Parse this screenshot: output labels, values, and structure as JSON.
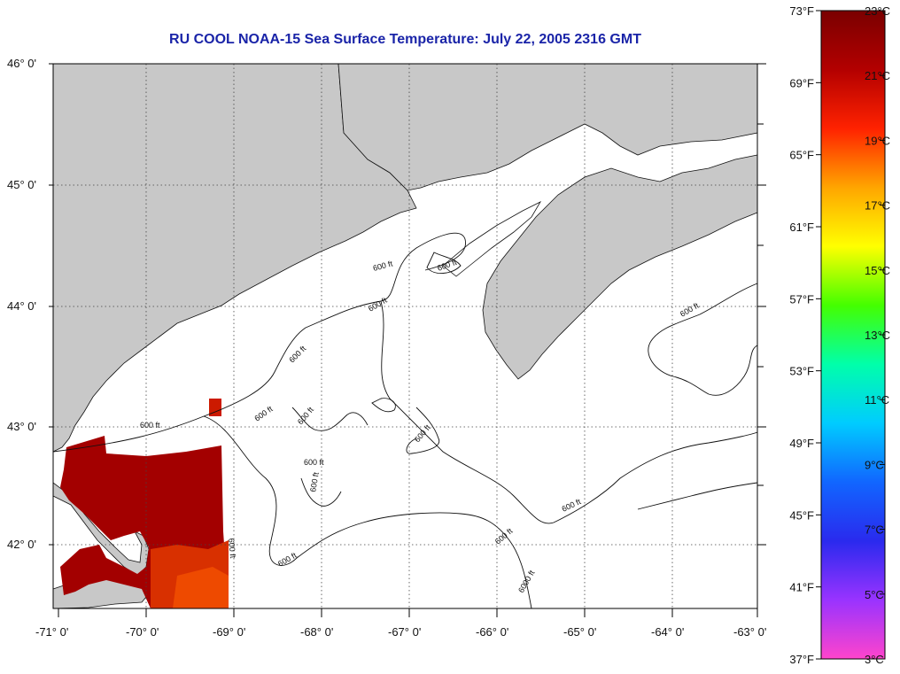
{
  "title": "RU COOL  NOAA-15  Sea Surface Temperature:  July 22, 2005 2316 GMT",
  "latitude_labels": [
    "46° 0'",
    "45° 0'",
    "44° 0'",
    "43° 0'",
    "42° 0'"
  ],
  "longitude_labels": [
    "-71° 0'",
    "-70° 0'",
    "-69° 0'",
    "-68° 0'",
    "-67° 0'",
    "-66° 0'",
    "-65° 0'",
    "-64° 0'",
    "-63° 0'"
  ],
  "contour_labels": [
    "600 ft",
    "600 ft",
    "600 ft",
    "600 ft",
    "600 ft",
    "600 ft",
    "600 ft",
    "600 ft",
    "600 ft",
    "600 ft",
    "600 ft",
    "600 ft",
    "600 ft",
    "600 ft",
    "600 ft",
    "6000 ft"
  ],
  "colorbar": {
    "fahrenheit_labels": [
      "73°F",
      "69°F",
      "65°F",
      "61°F",
      "57°F",
      "53°F",
      "49°F",
      "45°F",
      "41°F",
      "37°F"
    ],
    "celsius_labels": [
      "23°C",
      "21°C",
      "19°C",
      "17°C",
      "15°C",
      "13°C",
      "11°C",
      "9°C",
      "7°C",
      "5°C",
      "3°C"
    ],
    "colors": [
      "#ff44cc",
      "#9933ff",
      "#2a2aee",
      "#1166ff",
      "#00ccff",
      "#00ffaa",
      "#44ff00",
      "#ffff00",
      "#ffa500",
      "#ff2200",
      "#b30000",
      "#7a0000"
    ]
  },
  "colors": {
    "land": "#c8c8c8",
    "water": "#ffffff",
    "sst_warm": "#a30000",
    "title": "#1a24a8"
  }
}
